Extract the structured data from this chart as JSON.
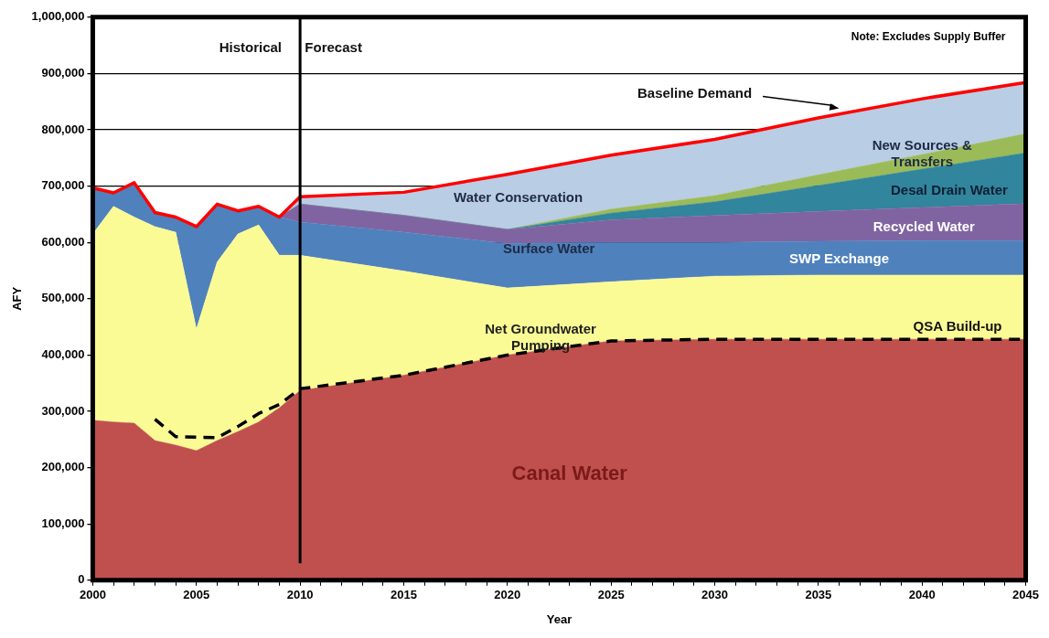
{
  "chart_data": {
    "type": "area",
    "stacked": true,
    "xlabel": "Year",
    "ylabel": "AFY",
    "x": [
      2000,
      2001,
      2002,
      2003,
      2004,
      2005,
      2006,
      2007,
      2008,
      2009,
      2010,
      2015,
      2020,
      2025,
      2030,
      2035,
      2040,
      2045
    ],
    "series": [
      {
        "color": "#c0504d",
        "values": [
          284000,
          281000,
          279000,
          248000,
          240000,
          230000,
          248000,
          264000,
          281000,
          306000,
          337000,
          364000,
          400000,
          425000,
          428000,
          428000,
          428000,
          428000
        ]
      },
      {
        "color": "#fbfb96",
        "values": [
          331000,
          383000,
          366000,
          380000,
          378000,
          216000,
          317000,
          351000,
          350000,
          271000,
          240000,
          185000,
          119000,
          105000,
          112000,
          114000,
          114000,
          114000
        ]
      },
      {
        "color": "#4f81bd",
        "values": [
          82000,
          24000,
          61000,
          25000,
          27000,
          182000,
          103000,
          41000,
          33000,
          68000,
          59000,
          69000,
          79000,
          70000,
          60000,
          60000,
          61000,
          61000
        ]
      },
      {
        "color": "#8064a2",
        "values": [
          0,
          0,
          0,
          0,
          0,
          0,
          0,
          0,
          0,
          0,
          32000,
          30000,
          25000,
          40000,
          48000,
          53000,
          59000,
          66000
        ]
      },
      {
        "color": "#31859c",
        "values": [
          0,
          0,
          0,
          0,
          0,
          0,
          0,
          0,
          0,
          0,
          0,
          0,
          0,
          12000,
          24000,
          46000,
          68000,
          90000
        ]
      },
      {
        "color": "#9bbb59",
        "values": [
          0,
          0,
          0,
          0,
          0,
          0,
          0,
          0,
          0,
          0,
          0,
          0,
          0,
          7000,
          11000,
          19000,
          26000,
          34000
        ]
      },
      {
        "color": "#b9cde5",
        "values": [
          0,
          0,
          0,
          0,
          0,
          0,
          0,
          0,
          0,
          0,
          13000,
          41000,
          98000,
          96000,
          100000,
          101000,
          99000,
          91000
        ]
      },
      {
        "type": "line",
        "color": "#ff0000",
        "values": [
          697000,
          688000,
          706000,
          653000,
          645000,
          628000,
          668000,
          656000,
          664000,
          645000,
          681000,
          689000,
          721000,
          755000,
          783000,
          821000,
          855000,
          884000
        ]
      },
      {
        "type": "line",
        "line_style": "dashed",
        "color": "#000000",
        "values": [
          null,
          null,
          null,
          286000,
          255000,
          254000,
          253000,
          273000,
          296000,
          312000,
          340000,
          364000,
          400000,
          425000,
          428000,
          428000,
          428000,
          428000
        ]
      }
    ],
    "xlim": [
      2000,
      2045
    ],
    "xticks": [
      2000,
      {
        "value": 2001,
        "label": null
      },
      {
        "value": 2002,
        "label": null
      },
      {
        "value": 2003,
        "label": null
      },
      {
        "value": 2004,
        "label": null
      },
      2005,
      {
        "value": 2006,
        "label": null
      },
      {
        "value": 2007,
        "label": null
      },
      {
        "value": 2008,
        "label": null
      },
      {
        "value": 2009,
        "label": null
      },
      2010,
      {
        "value": 2011,
        "label": null
      },
      {
        "value": 2012,
        "label": null
      },
      {
        "value": 2013,
        "label": null
      },
      {
        "value": 2014,
        "label": null
      },
      2015,
      {
        "value": 2016,
        "label": null
      },
      {
        "value": 2017,
        "label": null
      },
      {
        "value": 2018,
        "label": null
      },
      {
        "value": 2019,
        "label": null
      },
      2020,
      {
        "value": 2021,
        "label": null
      },
      {
        "value": 2022,
        "label": null
      },
      {
        "value": 2023,
        "label": null
      },
      {
        "value": 2024,
        "label": null
      },
      2025,
      {
        "value": 2026,
        "label": null
      },
      {
        "value": 2027,
        "label": null
      },
      {
        "value": 2028,
        "label": null
      },
      {
        "value": 2029,
        "label": null
      },
      2030,
      {
        "value": 2031,
        "label": null
      },
      {
        "value": 2032,
        "label": null
      },
      {
        "value": 2033,
        "label": null
      },
      {
        "value": 2034,
        "label": null
      },
      2035,
      {
        "value": 2036,
        "label": null
      },
      {
        "value": 2037,
        "label": null
      },
      {
        "value": 2038,
        "label": null
      },
      {
        "value": 2039,
        "label": null
      },
      2040,
      {
        "value": 2041,
        "label": null
      },
      {
        "value": 2042,
        "label": null
      },
      {
        "value": 2043,
        "label": null
      },
      {
        "value": 2044,
        "label": null
      },
      2045
    ],
    "ylim": [
      0,
      1000000
    ],
    "yticks": [
      0,
      {
        "value": 100000,
        "label": "100,000"
      },
      {
        "value": 200000,
        "label": "200,000"
      },
      {
        "value": 300000,
        "label": "300,000"
      },
      {
        "value": 400000,
        "label": "400,000"
      },
      {
        "value": 500000,
        "label": "500,000"
      },
      {
        "value": 600000,
        "label": "600,000"
      },
      {
        "value": 700000,
        "label": "700,000"
      },
      {
        "value": 800000,
        "label": "800,000"
      },
      {
        "value": 900000,
        "label": "900,000"
      },
      {
        "value": 1000000,
        "label": "1,000,000"
      }
    ],
    "grid": "y",
    "legend": false,
    "marker": "none",
    "ref_lines": [
      {
        "axis": "x",
        "value": 2010,
        "color": "#000000"
      }
    ],
    "annotations": [
      "Historical",
      "Forecast",
      {
        "text": "Baseline Demand",
        "x": 2036,
        "y": 838000
      },
      "Water Conservation",
      "Surface Water",
      "Net Groundwater\nPumping",
      "Canal Water",
      "New Sources &\nTransfers",
      "Desal Drain Water",
      "Recycled Water",
      "SWP Exchange",
      "QSA Build-up",
      "Note: Excludes Supply Buffer"
    ]
  }
}
